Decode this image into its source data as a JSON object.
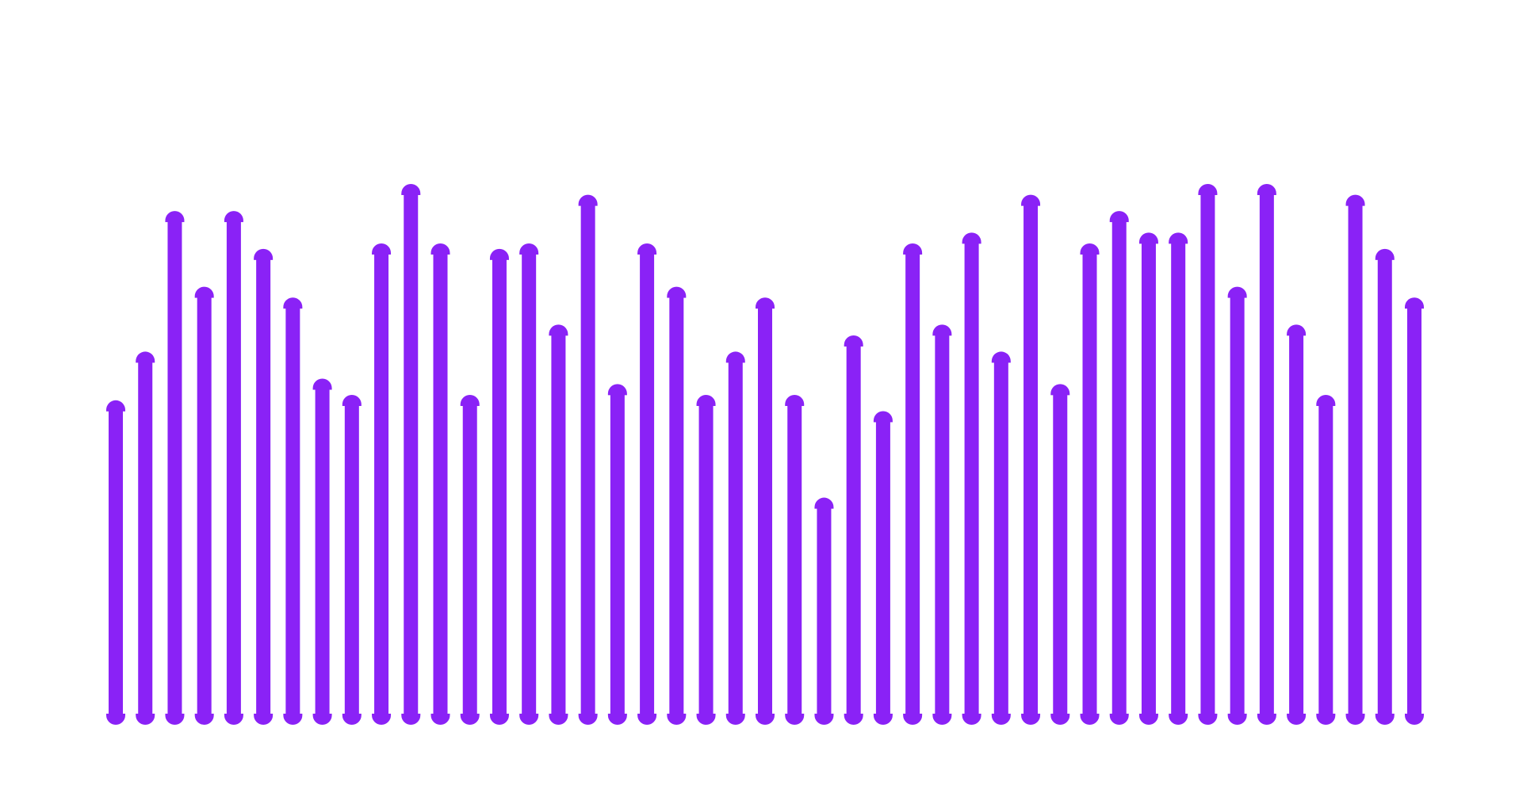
{
  "chart_data": {
    "type": "bar",
    "grid": false,
    "legend": "none",
    "bar_color": "#8a22f6",
    "ylim": [
      0,
      100
    ],
    "values": [
      60,
      69,
      95,
      81,
      95,
      88,
      79,
      64,
      61,
      89,
      100,
      89,
      61,
      88,
      89,
      74,
      98,
      63,
      89,
      81,
      61,
      69,
      79,
      61,
      42,
      72,
      58,
      89,
      74,
      91,
      69,
      98,
      63,
      89,
      95,
      91,
      91,
      100,
      81,
      100,
      74,
      61,
      98,
      88,
      79
    ]
  }
}
